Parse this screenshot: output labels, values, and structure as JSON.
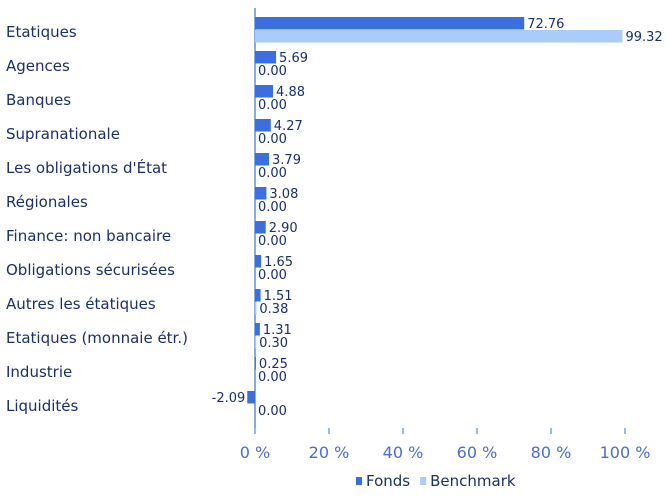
{
  "chart_data": {
    "type": "bar",
    "orientation": "horizontal",
    "categories": [
      "Etatiques",
      "Agences",
      "Banques",
      "Supranationale",
      "Les obligations d'État",
      "Régionales",
      "Finance: non bancaire",
      "Obligations sécurisées",
      "Autres les étatiques",
      "Etatiques (monnaie étr.)",
      "Industrie",
      "Liquidités"
    ],
    "series": [
      {
        "name": "Fonds",
        "color": "#3b6fe0",
        "values": [
          72.76,
          5.69,
          4.88,
          4.27,
          3.79,
          3.08,
          2.9,
          1.65,
          1.51,
          1.31,
          0.25,
          -2.09
        ],
        "labels": [
          "72.76",
          "5.69",
          "4.88",
          "4.27",
          "3.79",
          "3.08",
          "2.90",
          "1.65",
          "1.51",
          "1.31",
          "0.25",
          "-2.09"
        ]
      },
      {
        "name": "Benchmark",
        "color": "#a9cdf7",
        "values": [
          99.32,
          0.0,
          0.0,
          0.0,
          0.0,
          0.0,
          0.0,
          0.0,
          0.38,
          0.3,
          0.0,
          0.0
        ],
        "labels": [
          "99.32",
          "0.00",
          "0.00",
          "0.00",
          "0.00",
          "0.00",
          "0.00",
          "0.00",
          "0.38",
          "0.30",
          "0.00",
          "0.00"
        ]
      }
    ],
    "xlim": [
      0,
      100
    ],
    "xticks": [
      0,
      20,
      40,
      60,
      80,
      100
    ],
    "xtick_labels": [
      "0 %",
      "20 %",
      "40 %",
      "60 %",
      "80 %",
      "100 %"
    ],
    "grid": false,
    "legend_position": "bottom-center",
    "title": "",
    "xlabel": "",
    "ylabel": ""
  }
}
